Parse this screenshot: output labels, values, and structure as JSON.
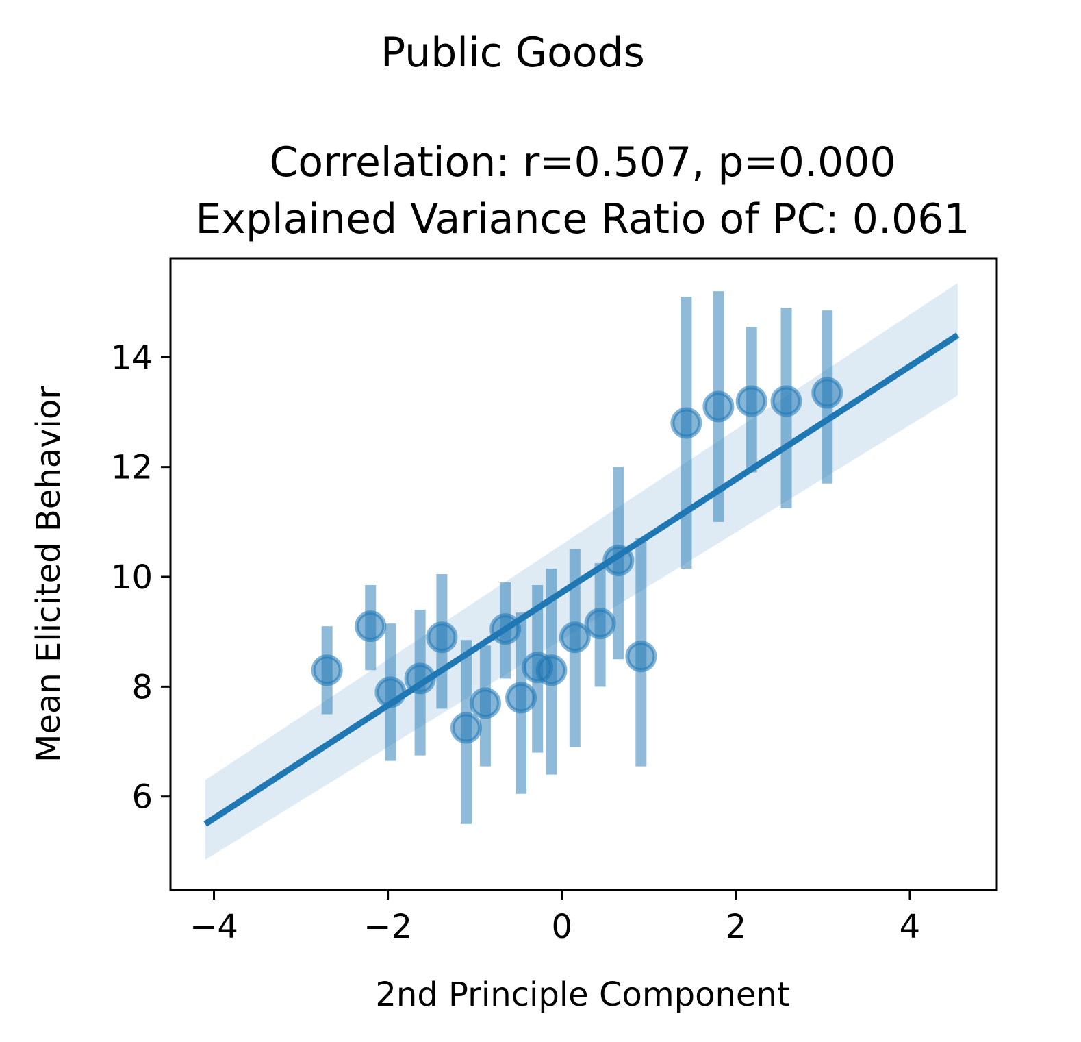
{
  "chart_data": {
    "type": "scatter",
    "suptitle": "Public Goods",
    "title_lines": [
      "Correlation: r=0.507, p=0.000",
      "Explained Variance Ratio of PC: 0.061"
    ],
    "xlabel": "2nd Principle Component",
    "ylabel": "Mean Elicited Behavior",
    "xlim": [
      -4.5,
      5.0
    ],
    "ylim": [
      4.3,
      15.8
    ],
    "xticks": [
      -4,
      -2,
      0,
      2,
      4
    ],
    "xtick_labels": [
      "−4",
      "−2",
      "0",
      "2",
      "4"
    ],
    "yticks": [
      6,
      8,
      10,
      12,
      14
    ],
    "ytick_labels": [
      "6",
      "8",
      "10",
      "12",
      "14"
    ],
    "grid": false,
    "colors": {
      "point": "#1f77b4",
      "line": "#1f77b4",
      "band": "#1f77b4"
    },
    "points": [
      {
        "x": -2.7,
        "y": 8.3,
        "ylow": 7.5,
        "yhigh": 9.1
      },
      {
        "x": -2.2,
        "y": 9.1,
        "ylow": 8.3,
        "yhigh": 9.85
      },
      {
        "x": -1.97,
        "y": 7.9,
        "ylow": 6.65,
        "yhigh": 9.15
      },
      {
        "x": -1.63,
        "y": 8.15,
        "ylow": 6.75,
        "yhigh": 9.4
      },
      {
        "x": -1.38,
        "y": 8.9,
        "ylow": 7.6,
        "yhigh": 10.05
      },
      {
        "x": -1.1,
        "y": 7.25,
        "ylow": 5.5,
        "yhigh": 8.85
      },
      {
        "x": -0.88,
        "y": 7.7,
        "ylow": 6.55,
        "yhigh": 8.75
      },
      {
        "x": -0.65,
        "y": 9.05,
        "ylow": 8.15,
        "yhigh": 9.9
      },
      {
        "x": -0.47,
        "y": 7.8,
        "ylow": 6.05,
        "yhigh": 9.35
      },
      {
        "x": -0.28,
        "y": 8.35,
        "ylow": 6.8,
        "yhigh": 9.85
      },
      {
        "x": -0.12,
        "y": 8.3,
        "ylow": 6.4,
        "yhigh": 10.15
      },
      {
        "x": 0.15,
        "y": 8.9,
        "ylow": 6.9,
        "yhigh": 10.5
      },
      {
        "x": 0.44,
        "y": 9.15,
        "ylow": 8.0,
        "yhigh": 10.25
      },
      {
        "x": 0.65,
        "y": 10.3,
        "ylow": 8.5,
        "yhigh": 12.0
      },
      {
        "x": 0.91,
        "y": 8.55,
        "ylow": 6.55,
        "yhigh": 10.7
      },
      {
        "x": 1.43,
        "y": 12.8,
        "ylow": 10.15,
        "yhigh": 15.1
      },
      {
        "x": 1.8,
        "y": 13.1,
        "ylow": 11.0,
        "yhigh": 15.2
      },
      {
        "x": 2.18,
        "y": 13.2,
        "ylow": 11.9,
        "yhigh": 14.55
      },
      {
        "x": 2.58,
        "y": 13.2,
        "ylow": 11.25,
        "yhigh": 14.9
      },
      {
        "x": 3.05,
        "y": 13.35,
        "ylow": 11.7,
        "yhigh": 14.85
      }
    ],
    "regression": {
      "x": [
        -4.1,
        4.55
      ],
      "y": [
        5.5,
        14.4
      ]
    },
    "confidence_band": {
      "x": [
        -4.1,
        4.55
      ],
      "upper": [
        6.3,
        15.35
      ],
      "lower": [
        4.85,
        13.3
      ]
    }
  }
}
